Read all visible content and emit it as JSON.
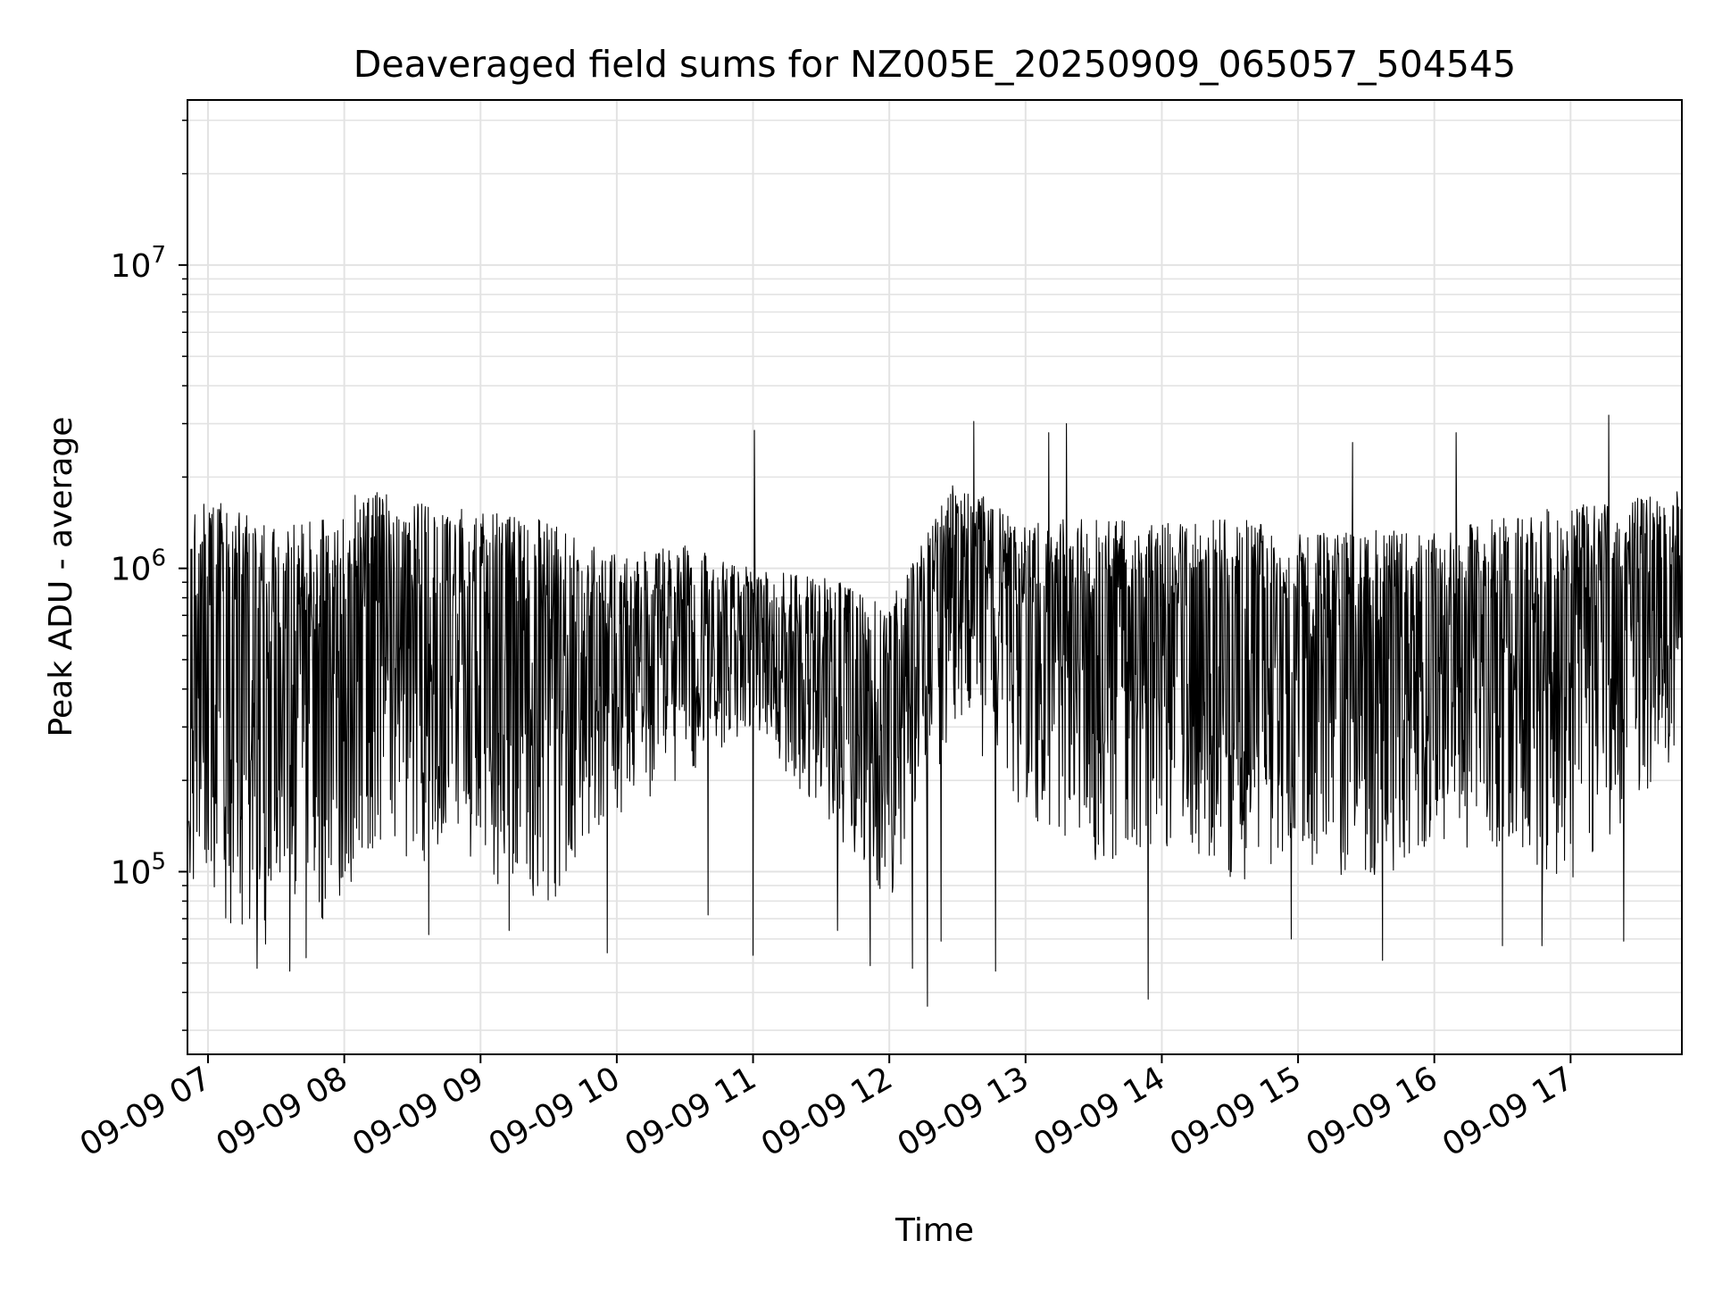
{
  "chart_data": {
    "type": "line",
    "title": "Deaveraged field sums for NZ005E_20250909_065057_504545",
    "xlabel": "Time",
    "ylabel": "Peak ADU - average",
    "yscale": "log",
    "xlim": [
      "2025-09-09 06:50:57",
      "2025-09-09 17:49:00"
    ],
    "ylim": [
      25000,
      35000000
    ],
    "xticks": [
      "09-09 07",
      "09-09 08",
      "09-09 09",
      "09-09 10",
      "09-09 11",
      "09-09 12",
      "09-09 13",
      "09-09 14",
      "09-09 15",
      "09-09 16",
      "09-09 17"
    ],
    "yticks": [
      {
        "base": "10",
        "exp": "5"
      },
      {
        "base": "10",
        "exp": "6"
      },
      {
        "base": "10",
        "exp": "7"
      }
    ],
    "grid": true,
    "series": [
      {
        "line_color": "#000000",
        "note_units": "hours after 09-09 00:00 paired with value",
        "envelope": [
          {
            "x": 6.85,
            "lo": 100000,
            "hi": 1500000
          },
          {
            "x": 7.0,
            "lo": 75000,
            "hi": 1700000
          },
          {
            "x": 7.25,
            "lo": 62000,
            "hi": 1550000
          },
          {
            "x": 7.5,
            "lo": 55000,
            "hi": 1350000
          },
          {
            "x": 7.75,
            "lo": 60000,
            "hi": 1450000
          },
          {
            "x": 8.0,
            "lo": 85000,
            "hi": 1750000
          },
          {
            "x": 8.25,
            "lo": 120000,
            "hi": 1800000
          },
          {
            "x": 8.5,
            "lo": 110000,
            "hi": 1650000
          },
          {
            "x": 9.0,
            "lo": 95000,
            "hi": 1550000
          },
          {
            "x": 9.5,
            "lo": 80000,
            "hi": 1450000
          },
          {
            "x": 10.0,
            "lo": 150000,
            "hi": 1100000
          },
          {
            "x": 10.5,
            "lo": 200000,
            "hi": 1200000
          },
          {
            "x": 11.0,
            "lo": 300000,
            "hi": 1000000
          },
          {
            "x": 11.5,
            "lo": 150000,
            "hi": 950000
          },
          {
            "x": 12.0,
            "lo": 80000,
            "hi": 800000
          },
          {
            "x": 12.5,
            "lo": 300000,
            "hi": 2000000
          },
          {
            "x": 13.0,
            "lo": 150000,
            "hi": 1400000
          },
          {
            "x": 13.5,
            "lo": 100000,
            "hi": 1500000
          },
          {
            "x": 14.0,
            "lo": 120000,
            "hi": 1400000
          },
          {
            "x": 14.5,
            "lo": 90000,
            "hi": 1500000
          },
          {
            "x": 15.0,
            "lo": 110000,
            "hi": 1300000
          },
          {
            "x": 15.5,
            "lo": 90000,
            "hi": 1350000
          },
          {
            "x": 16.0,
            "lo": 120000,
            "hi": 1300000
          },
          {
            "x": 16.5,
            "lo": 120000,
            "hi": 1500000
          },
          {
            "x": 17.0,
            "lo": 90000,
            "hi": 1600000
          },
          {
            "x": 17.8,
            "lo": 250000,
            "hi": 1800000
          }
        ],
        "spikes": [
          {
            "x": 7.36,
            "y": 48000
          },
          {
            "x": 7.6,
            "y": 47000
          },
          {
            "x": 7.72,
            "y": 52000
          },
          {
            "x": 8.62,
            "y": 62000
          },
          {
            "x": 9.21,
            "y": 64000
          },
          {
            "x": 9.55,
            "y": 83000
          },
          {
            "x": 9.93,
            "y": 54000
          },
          {
            "x": 10.67,
            "y": 72000
          },
          {
            "x": 11.0,
            "y": 53000
          },
          {
            "x": 11.01,
            "y": 2850000
          },
          {
            "x": 11.62,
            "y": 64000
          },
          {
            "x": 11.86,
            "y": 49000
          },
          {
            "x": 12.17,
            "y": 48000
          },
          {
            "x": 12.28,
            "y": 36000
          },
          {
            "x": 12.38,
            "y": 59000
          },
          {
            "x": 12.62,
            "y": 3050000
          },
          {
            "x": 12.78,
            "y": 47000
          },
          {
            "x": 13.17,
            "y": 2800000
          },
          {
            "x": 13.3,
            "y": 3000000
          },
          {
            "x": 13.9,
            "y": 38000
          },
          {
            "x": 14.95,
            "y": 60000
          },
          {
            "x": 15.62,
            "y": 51000
          },
          {
            "x": 15.4,
            "y": 2600000
          },
          {
            "x": 16.16,
            "y": 2800000
          },
          {
            "x": 16.5,
            "y": 57000
          },
          {
            "x": 16.79,
            "y": 57000
          },
          {
            "x": 17.28,
            "y": 3200000
          },
          {
            "x": 17.39,
            "y": 59000
          }
        ]
      }
    ]
  }
}
